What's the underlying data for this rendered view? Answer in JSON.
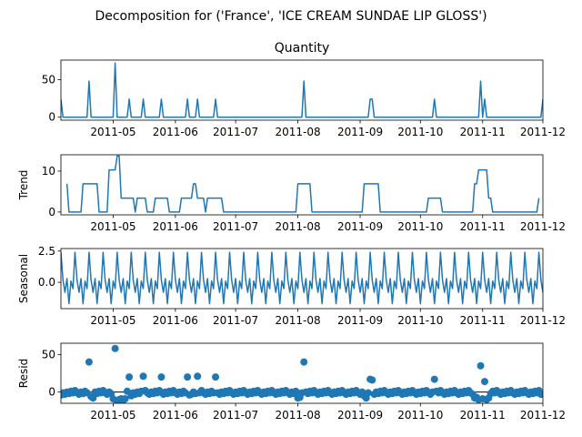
{
  "figure": {
    "suptitle": "Decomposition for ('France', 'ICE CREAM SUNDAE LIP GLOSS')",
    "line_color": "#1f77b4"
  },
  "x_ticks": [
    "2011-05",
    "2011-06",
    "2011-07",
    "2011-08",
    "2011-09",
    "2011-10",
    "2011-11",
    "2011-12"
  ],
  "chart_data": [
    {
      "type": "line",
      "title": "Quantity",
      "ylabel": "",
      "xlim": [
        "2011-04-05",
        "2011-12-01"
      ],
      "ylim": [
        -4,
        76
      ],
      "yticks": [
        0,
        50
      ],
      "series": [
        {
          "points": [
            [
              "2011-04-05",
              24
            ],
            [
              "2011-04-06",
              0
            ],
            [
              "2011-04-18",
              0
            ],
            [
              "2011-04-19",
              48
            ],
            [
              "2011-04-20",
              0
            ],
            [
              "2011-05-01",
              0
            ],
            [
              "2011-05-02",
              72
            ],
            [
              "2011-05-03",
              0
            ],
            [
              "2011-05-08",
              0
            ],
            [
              "2011-05-09",
              24
            ],
            [
              "2011-05-10",
              0
            ],
            [
              "2011-05-15",
              0
            ],
            [
              "2011-05-16",
              24
            ],
            [
              "2011-05-17",
              0
            ],
            [
              "2011-05-24",
              0
            ],
            [
              "2011-05-25",
              24
            ],
            [
              "2011-05-26",
              0
            ],
            [
              "2011-06-06",
              0
            ],
            [
              "2011-06-07",
              24
            ],
            [
              "2011-06-08",
              0
            ],
            [
              "2011-06-11",
              0
            ],
            [
              "2011-06-12",
              24
            ],
            [
              "2011-06-13",
              0
            ],
            [
              "2011-06-20",
              0
            ],
            [
              "2011-06-21",
              24
            ],
            [
              "2011-06-22",
              0
            ],
            [
              "2011-08-03",
              0
            ],
            [
              "2011-08-04",
              48
            ],
            [
              "2011-08-05",
              0
            ],
            [
              "2011-09-05",
              0
            ],
            [
              "2011-09-06",
              24
            ],
            [
              "2011-09-07",
              24
            ],
            [
              "2011-09-08",
              0
            ],
            [
              "2011-10-07",
              0
            ],
            [
              "2011-10-08",
              24
            ],
            [
              "2011-10-09",
              0
            ],
            [
              "2011-10-30",
              0
            ],
            [
              "2011-10-31",
              48
            ],
            [
              "2011-11-01",
              0
            ],
            [
              "2011-11-02",
              24
            ],
            [
              "2011-11-03",
              0
            ],
            [
              "2011-11-30",
              0
            ],
            [
              "2011-12-01",
              24
            ]
          ]
        }
      ]
    },
    {
      "type": "line",
      "title": "",
      "ylabel": "Trend",
      "xlim": [
        "2011-04-05",
        "2011-12-01"
      ],
      "ylim": [
        -0.7,
        14
      ],
      "yticks": [
        0,
        10
      ],
      "series": [
        {
          "points": [
            [
              "2011-04-08",
              6.9
            ],
            [
              "2011-04-09",
              0
            ],
            [
              "2011-04-15",
              0
            ],
            [
              "2011-04-16",
              6.9
            ],
            [
              "2011-04-23",
              6.9
            ],
            [
              "2011-04-24",
              0
            ],
            [
              "2011-04-28",
              0
            ],
            [
              "2011-04-29",
              10.3
            ],
            [
              "2011-05-02",
              10.3
            ],
            [
              "2011-05-03",
              13.7
            ],
            [
              "2011-05-04",
              13.7
            ],
            [
              "2011-05-05",
              3.4
            ],
            [
              "2011-05-11",
              3.4
            ],
            [
              "2011-05-12",
              0
            ],
            [
              "2011-05-13",
              3.4
            ],
            [
              "2011-05-17",
              3.4
            ],
            [
              "2011-05-18",
              0
            ],
            [
              "2011-05-21",
              0
            ],
            [
              "2011-05-22",
              3.4
            ],
            [
              "2011-05-28",
              3.4
            ],
            [
              "2011-05-29",
              0
            ],
            [
              "2011-06-03",
              0
            ],
            [
              "2011-06-04",
              3.4
            ],
            [
              "2011-06-09",
              3.4
            ],
            [
              "2011-06-10",
              6.9
            ],
            [
              "2011-06-11",
              6.9
            ],
            [
              "2011-06-12",
              3.4
            ],
            [
              "2011-06-15",
              3.4
            ],
            [
              "2011-06-16",
              0
            ],
            [
              "2011-06-17",
              3.4
            ],
            [
              "2011-06-24",
              3.4
            ],
            [
              "2011-06-25",
              0
            ],
            [
              "2011-07-31",
              0
            ],
            [
              "2011-08-01",
              6.9
            ],
            [
              "2011-08-07",
              6.9
            ],
            [
              "2011-08-08",
              0
            ],
            [
              "2011-09-02",
              0
            ],
            [
              "2011-09-03",
              6.9
            ],
            [
              "2011-09-10",
              6.9
            ],
            [
              "2011-09-11",
              0
            ],
            [
              "2011-10-04",
              0
            ],
            [
              "2011-10-05",
              3.4
            ],
            [
              "2011-10-11",
              3.4
            ],
            [
              "2011-10-12",
              0
            ],
            [
              "2011-10-27",
              0
            ],
            [
              "2011-10-28",
              6.9
            ],
            [
              "2011-10-29",
              6.9
            ],
            [
              "2011-10-30",
              10.3
            ],
            [
              "2011-11-03",
              10.3
            ],
            [
              "2011-11-04",
              3.4
            ],
            [
              "2011-11-05",
              3.4
            ],
            [
              "2011-11-06",
              0
            ],
            [
              "2011-11-28",
              0
            ],
            [
              "2011-11-29",
              3.4
            ]
          ]
        }
      ]
    },
    {
      "type": "line",
      "title": "",
      "ylabel": "Seasonal",
      "xlim": [
        "2011-04-05",
        "2011-12-01"
      ],
      "ylim": [
        -2.1,
        2.7
      ],
      "yticks": [
        0.0,
        2.5
      ],
      "seasonal_period_days": 7,
      "seasonal_pattern": [
        2.4,
        0.2,
        -0.8,
        0.3,
        -1.7,
        0.1,
        -0.5
      ],
      "series": [
        {
          "points": []
        }
      ]
    },
    {
      "type": "scatter",
      "title": "",
      "ylabel": "Resid",
      "xlim": [
        "2011-04-05",
        "2011-12-01"
      ],
      "ylim": [
        -15,
        65
      ],
      "yticks": [
        0,
        50
      ],
      "baseline": 0,
      "outliers": [
        [
          "2011-04-19",
          40
        ],
        [
          "2011-05-02",
          58
        ],
        [
          "2011-05-09",
          20
        ],
        [
          "2011-05-16",
          21
        ],
        [
          "2011-05-25",
          20
        ],
        [
          "2011-06-07",
          20
        ],
        [
          "2011-06-12",
          21
        ],
        [
          "2011-06-21",
          20
        ],
        [
          "2011-08-04",
          40
        ],
        [
          "2011-09-06",
          17
        ],
        [
          "2011-09-07",
          16
        ],
        [
          "2011-10-08",
          17
        ],
        [
          "2011-10-31",
          35
        ],
        [
          "2011-11-02",
          14
        ]
      ],
      "dips": [
        [
          "2011-04-05",
          -4
        ],
        [
          "2011-04-20",
          -6
        ],
        [
          "2011-04-21",
          -8
        ],
        [
          "2011-05-01",
          -9
        ],
        [
          "2011-05-03",
          -12
        ],
        [
          "2011-05-04",
          -10
        ],
        [
          "2011-05-05",
          -9
        ],
        [
          "2011-05-06",
          -11
        ],
        [
          "2011-05-07",
          -9
        ],
        [
          "2011-05-10",
          -5
        ],
        [
          "2011-06-08",
          -4
        ],
        [
          "2011-08-01",
          -8
        ],
        [
          "2011-08-02",
          -7
        ],
        [
          "2011-09-03",
          -5
        ],
        [
          "2011-09-04",
          -8
        ],
        [
          "2011-10-28",
          -8
        ],
        [
          "2011-10-29",
          -7
        ],
        [
          "2011-10-30",
          -10
        ],
        [
          "2011-11-01",
          -9
        ],
        [
          "2011-11-03",
          -10
        ],
        [
          "2011-11-04",
          -8
        ],
        [
          "2011-11-30",
          -3
        ]
      ]
    }
  ]
}
